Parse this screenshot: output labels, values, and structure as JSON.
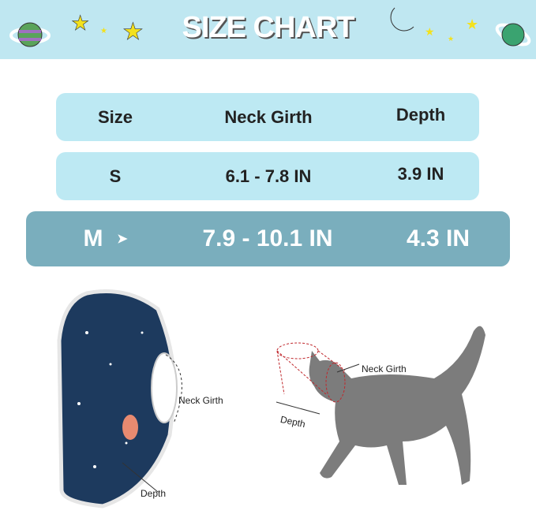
{
  "header": {
    "title": "SIZE CHART"
  },
  "table": {
    "columns": [
      "Size",
      "Neck Girth",
      "Depth"
    ],
    "rows": [
      {
        "size": "S",
        "neck_girth": "6.1 - 7.8 IN",
        "depth": "3.9 IN"
      },
      {
        "size": "M",
        "neck_girth": "7.9 - 10.1 IN",
        "depth": "4.3 IN",
        "marker": "➤",
        "highlighted": true
      }
    ]
  },
  "diagrams": {
    "cone": {
      "neck_label": "Neck Girth",
      "depth_label": "Depth"
    },
    "cat": {
      "neck_label": "Neck Girth",
      "depth_label": "Depth"
    }
  },
  "colors": {
    "band": "#bfe7f1",
    "row": "#bde9f3",
    "highlight": "#7aaebd"
  }
}
